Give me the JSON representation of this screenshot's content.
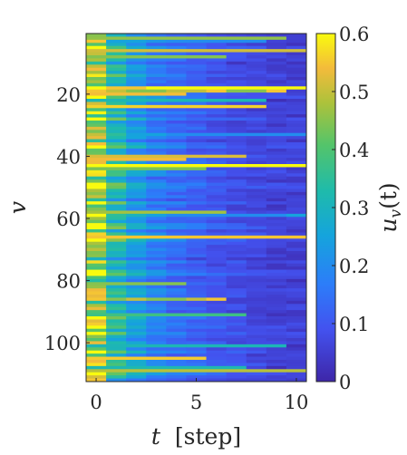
{
  "chart_data": {
    "type": "heatmap",
    "title": "",
    "xlabel_var": "t",
    "xlabel_unit": "[step]",
    "ylabel": "v",
    "colorbar_label": "u_v(t)",
    "colorbar_label_display": {
      "main": "u",
      "sub": "v",
      "args": "(t)"
    },
    "xlim": [
      -0.5,
      10.5
    ],
    "ylim": [
      0.5,
      112.5
    ],
    "y_reversed": true,
    "x_ticks": [
      0,
      5,
      10
    ],
    "x_tick_labels": [
      "0",
      "5",
      "10"
    ],
    "y_ticks": [
      20,
      40,
      60,
      80,
      100
    ],
    "y_tick_labels": [
      "20",
      "40",
      "60",
      "80",
      "100"
    ],
    "colorbar_range": [
      0,
      0.6
    ],
    "colorbar_ticks": [
      0,
      0.1,
      0.2,
      0.3,
      0.4,
      0.5,
      0.6
    ],
    "colorbar_tick_labels": [
      "0",
      "0.1",
      "0.2",
      "0.3",
      "0.4",
      "0.5",
      "0.6"
    ],
    "colormap": "parula",
    "grid": false,
    "colors": {
      "axis": "#262626",
      "background": "#ffffff"
    },
    "n_rows": 112,
    "n_cols": 11,
    "representative_rows": [
      {
        "v": 1,
        "values": [
          0.45,
          0.3,
          0.2,
          0.15,
          0.12,
          0.1,
          0.08,
          0.07,
          0.06,
          0.05,
          0.05
        ]
      },
      {
        "v": 3,
        "values": [
          0.55,
          0.25,
          0.25,
          0.22,
          0.2,
          0.2,
          0.2,
          0.2,
          0.2,
          0.06,
          0.05
        ]
      },
      {
        "v": 18,
        "values": [
          0.6,
          0.55,
          0.55,
          0.6,
          0.6,
          0.6,
          0.6,
          0.6,
          0.6,
          0.6,
          0.6
        ]
      },
      {
        "v": 19,
        "values": [
          0.55,
          0.5,
          0.45,
          0.45,
          0.5,
          0.5,
          0.55,
          0.45,
          0.45,
          0.55,
          0.05
        ]
      },
      {
        "v": 33,
        "values": [
          0.5,
          0.35,
          0.25,
          0.25,
          0.2,
          0.2,
          0.2,
          0.2,
          0.2,
          0.2,
          0.2
        ]
      },
      {
        "v": 43,
        "values": [
          0.6,
          0.6,
          0.6,
          0.6,
          0.6,
          0.6,
          0.6,
          0.6,
          0.6,
          0.6,
          0.6
        ]
      },
      {
        "v": 59,
        "values": [
          0.6,
          0.35,
          0.3,
          0.25,
          0.2,
          0.2,
          0.2,
          0.2,
          0.2,
          0.2,
          0.25
        ]
      },
      {
        "v": 66,
        "values": [
          0.55,
          0.55,
          0.55,
          0.55,
          0.55,
          0.55,
          0.55,
          0.55,
          0.55,
          0.55,
          0.55
        ]
      },
      {
        "v": 86,
        "values": [
          0.55,
          0.45,
          0.5,
          0.45,
          0.45,
          0.5,
          0.55,
          0.05,
          0.05,
          0.05,
          0.05
        ]
      },
      {
        "v": 112,
        "values": [
          0.55,
          0.2,
          0.15,
          0.12,
          0.1,
          0.08,
          0.07,
          0.06,
          0.06,
          0.06,
          0.05
        ]
      }
    ]
  }
}
